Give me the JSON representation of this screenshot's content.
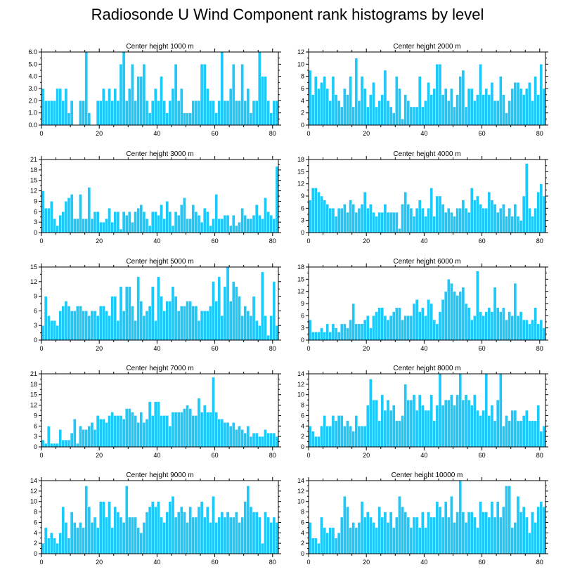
{
  "title": "Radiosonde U Wind Component rank histograms by level",
  "bar_color": "#1EC8F8",
  "chart_data": [
    {
      "type": "bar",
      "title": "Center height 1000 m",
      "xlim": [
        0,
        82
      ],
      "xticks": [
        0,
        20,
        40,
        60,
        80
      ],
      "ylim": [
        0,
        6
      ],
      "yticks": [
        "0.0",
        "1.0",
        "2.0",
        "3.0",
        "4.0",
        "5.0",
        "6.0"
      ],
      "values": [
        3,
        2,
        2,
        2,
        2,
        3,
        3,
        2,
        3,
        1,
        2,
        0,
        0,
        2,
        2,
        6,
        1,
        0,
        0,
        2,
        2,
        3,
        2,
        3,
        2,
        3,
        2,
        5,
        6,
        2,
        3,
        5,
        2,
        4,
        4,
        5,
        2,
        1,
        2,
        3,
        2,
        4,
        2,
        1,
        2,
        3,
        5,
        2,
        3,
        1,
        1,
        1,
        2,
        2,
        2,
        5,
        5,
        3,
        2,
        2,
        1,
        2,
        6,
        2,
        2,
        3,
        5,
        2,
        2,
        5,
        2,
        3,
        1,
        2,
        2,
        6,
        4,
        4,
        2,
        1,
        2,
        2
      ]
    },
    {
      "type": "bar",
      "title": "Center height 2000 m",
      "xlim": [
        0,
        82
      ],
      "xticks": [
        0,
        20,
        40,
        60,
        80
      ],
      "ylim": [
        0,
        12
      ],
      "yticks": [
        "0",
        "2",
        "4",
        "6",
        "8",
        "10",
        "12"
      ],
      "values": [
        9,
        5,
        8,
        6,
        7,
        8,
        6,
        4,
        8,
        5,
        4,
        3,
        6,
        5,
        8,
        3,
        11,
        4,
        8,
        6,
        3,
        5,
        7,
        3,
        4,
        5,
        9,
        4,
        3,
        2,
        8,
        6,
        1,
        5,
        4,
        3,
        3,
        3,
        8,
        3,
        4,
        7,
        5,
        6,
        10,
        10,
        5,
        6,
        4,
        6,
        3,
        5,
        8,
        9,
        3,
        6,
        6,
        4,
        5,
        10,
        5,
        6,
        5,
        7,
        4,
        4,
        8,
        5,
        2,
        4,
        6,
        7,
        7,
        6,
        5,
        6,
        7,
        4,
        8,
        5,
        10,
        6
      ]
    },
    {
      "type": "bar",
      "title": "Center height 3000 m",
      "xlim": [
        0,
        82
      ],
      "xticks": [
        0,
        20,
        40,
        60,
        80
      ],
      "ylim": [
        0,
        21
      ],
      "yticks": [
        "0",
        "3",
        "6",
        "9",
        "12",
        "15",
        "18",
        "21"
      ],
      "values": [
        12,
        7,
        7,
        9,
        4,
        2,
        5,
        6,
        9,
        10,
        11,
        4,
        4,
        11,
        4,
        4,
        13,
        4,
        6,
        6,
        3,
        3,
        4,
        7,
        3,
        6,
        6,
        1,
        6,
        5,
        6,
        3,
        6,
        7,
        8,
        6,
        4,
        2,
        6,
        6,
        5,
        8,
        4,
        9,
        6,
        2,
        6,
        5,
        8,
        10,
        4,
        4,
        8,
        6,
        5,
        3,
        7,
        6,
        2,
        4,
        11,
        4,
        4,
        5,
        5,
        2,
        5,
        2,
        3,
        7,
        5,
        4,
        4,
        5,
        8,
        5,
        4,
        10,
        6,
        5,
        4,
        19
      ]
    },
    {
      "type": "bar",
      "title": "Center height 4000 m",
      "xlim": [
        0,
        82
      ],
      "xticks": [
        0,
        20,
        40,
        60,
        80
      ],
      "ylim": [
        0,
        18
      ],
      "yticks": [
        "0",
        "3",
        "6",
        "9",
        "12",
        "15",
        "18"
      ],
      "values": [
        8,
        11,
        11,
        10,
        9,
        8,
        7,
        6,
        6,
        4,
        6,
        6,
        7,
        5,
        8,
        7,
        5,
        6,
        7,
        10,
        6,
        7,
        5,
        4,
        5,
        5,
        7,
        5,
        5,
        5,
        5,
        1,
        7,
        10,
        7,
        6,
        4,
        6,
        8,
        6,
        4,
        6,
        11,
        4,
        9,
        9,
        7,
        5,
        6,
        5,
        4,
        6,
        6,
        8,
        6,
        5,
        11,
        8,
        9,
        7,
        6,
        6,
        10,
        8,
        7,
        5,
        6,
        7,
        4,
        6,
        4,
        7,
        4,
        3,
        9,
        17,
        6,
        4,
        6,
        10,
        12,
        9
      ]
    },
    {
      "type": "bar",
      "title": "Center height 5000 m",
      "xlim": [
        0,
        82
      ],
      "xticks": [
        0,
        20,
        40,
        60,
        80
      ],
      "ylim": [
        0,
        15
      ],
      "yticks": [
        "0",
        "3",
        "6",
        "9",
        "12",
        "15"
      ],
      "values": [
        3,
        9,
        5,
        4,
        4,
        3,
        6,
        7,
        8,
        7,
        6,
        6,
        7,
        7,
        6,
        6,
        5,
        6,
        6,
        5,
        7,
        7,
        6,
        5,
        9,
        9,
        4,
        11,
        6,
        11,
        11,
        7,
        4,
        13,
        8,
        5,
        6,
        7,
        11,
        4,
        13,
        9,
        6,
        8,
        8,
        11,
        9,
        6,
        7,
        7,
        8,
        8,
        7,
        7,
        4,
        6,
        6,
        6,
        7,
        12,
        8,
        13,
        5,
        11,
        15,
        8,
        12,
        11,
        9,
        5,
        7,
        6,
        5,
        9,
        4,
        3,
        14,
        5,
        1,
        5,
        12,
        3
      ]
    },
    {
      "type": "bar",
      "title": "Center height 6000 m",
      "xlim": [
        0,
        82
      ],
      "xticks": [
        0,
        20,
        40,
        60,
        80
      ],
      "ylim": [
        0,
        18
      ],
      "yticks": [
        "0",
        "3",
        "6",
        "9",
        "12",
        "15",
        "18"
      ],
      "values": [
        5,
        2,
        2,
        2,
        3,
        2,
        4,
        2,
        4,
        3,
        2,
        4,
        4,
        3,
        5,
        9,
        4,
        4,
        4,
        5,
        6,
        3,
        6,
        7,
        8,
        8,
        6,
        5,
        6,
        7,
        8,
        8,
        5,
        6,
        6,
        6,
        9,
        10,
        7,
        8,
        6,
        10,
        9,
        5,
        4,
        7,
        10,
        12,
        15,
        14,
        12,
        11,
        12,
        13,
        9,
        8,
        5,
        6,
        17,
        7,
        6,
        7,
        8,
        7,
        13,
        8,
        7,
        8,
        5,
        7,
        6,
        14,
        6,
        7,
        5,
        5,
        4,
        5,
        8,
        4,
        5,
        3
      ]
    },
    {
      "type": "bar",
      "title": "Center height 7000 m",
      "xlim": [
        0,
        82
      ],
      "xticks": [
        0,
        20,
        40,
        60,
        80
      ],
      "ylim": [
        0,
        21
      ],
      "yticks": [
        "0",
        "3",
        "6",
        "9",
        "12",
        "15",
        "18",
        "21"
      ],
      "values": [
        2,
        1,
        6,
        1,
        1,
        1,
        5,
        2,
        2,
        2,
        4,
        8,
        1,
        6,
        5,
        5,
        6,
        7,
        5,
        9,
        8,
        8,
        7,
        9,
        10,
        9,
        9,
        9,
        8,
        11,
        11,
        10,
        9,
        7,
        10,
        7,
        8,
        13,
        9,
        13,
        13,
        9,
        9,
        9,
        6,
        10,
        10,
        10,
        10,
        11,
        12,
        11,
        9,
        9,
        14,
        10,
        12,
        10,
        10,
        20,
        10,
        8,
        8,
        7,
        7,
        6,
        7,
        5,
        6,
        5,
        4,
        6,
        3,
        4,
        4,
        3,
        3,
        5,
        4,
        4,
        4,
        3
      ]
    },
    {
      "type": "bar",
      "title": "Center height 8000 m",
      "xlim": [
        0,
        82
      ],
      "xticks": [
        0,
        20,
        40,
        60,
        80
      ],
      "ylim": [
        0,
        14
      ],
      "yticks": [
        "0",
        "2",
        "4",
        "6",
        "8",
        "10",
        "12",
        "14"
      ],
      "values": [
        4,
        3,
        2,
        2,
        4,
        6,
        4,
        4,
        6,
        5,
        6,
        6,
        4,
        5,
        4,
        3,
        6,
        4,
        4,
        4,
        8,
        13,
        9,
        9,
        5,
        10,
        7,
        9,
        7,
        8,
        5,
        5,
        6,
        12,
        9,
        9,
        10,
        7,
        10,
        8,
        7,
        7,
        10,
        5,
        8,
        14,
        8,
        9,
        9,
        10,
        8,
        10,
        14,
        9,
        10,
        9,
        8,
        10,
        7,
        6,
        7,
        14,
        6,
        8,
        5,
        9,
        14,
        4,
        6,
        5,
        7,
        7,
        5,
        5,
        6,
        7,
        5,
        5,
        5,
        8,
        3,
        4
      ]
    },
    {
      "type": "bar",
      "title": "Center height 9000 m",
      "xlim": [
        0,
        82
      ],
      "xticks": [
        0,
        20,
        40,
        60,
        80
      ],
      "ylim": [
        0,
        14
      ],
      "yticks": [
        "0",
        "2",
        "4",
        "6",
        "8",
        "10",
        "12",
        "14"
      ],
      "values": [
        2,
        5,
        3,
        4,
        3,
        2,
        4,
        9,
        6,
        3,
        8,
        6,
        5,
        6,
        5,
        13,
        9,
        6,
        7,
        5,
        10,
        10,
        7,
        10,
        5,
        9,
        8,
        7,
        6,
        13,
        7,
        7,
        7,
        5,
        4,
        6,
        8,
        9,
        10,
        9,
        10,
        7,
        6,
        8,
        10,
        11,
        7,
        8,
        9,
        8,
        6,
        9,
        7,
        7,
        9,
        10,
        7,
        9,
        6,
        11,
        6,
        7,
        8,
        7,
        8,
        7,
        7,
        8,
        6,
        7,
        10,
        13,
        9,
        8,
        8,
        7,
        2,
        8,
        7,
        6,
        7,
        6
      ]
    },
    {
      "type": "bar",
      "title": "Center height 10000 m",
      "xlim": [
        0,
        82
      ],
      "xticks": [
        0,
        20,
        40,
        60,
        80
      ],
      "ylim": [
        0,
        14
      ],
      "yticks": [
        "0",
        "2",
        "4",
        "6",
        "8",
        "10",
        "12",
        "14"
      ],
      "values": [
        6,
        3,
        3,
        2,
        7,
        5,
        4,
        5,
        5,
        3,
        4,
        7,
        11,
        9,
        5,
        6,
        5,
        6,
        10,
        7,
        8,
        7,
        6,
        5,
        9,
        7,
        8,
        6,
        8,
        5,
        7,
        11,
        9,
        8,
        7,
        5,
        7,
        7,
        5,
        8,
        5,
        8,
        7,
        7,
        10,
        9,
        7,
        10,
        7,
        11,
        6,
        8,
        14,
        8,
        6,
        8,
        8,
        7,
        5,
        10,
        8,
        8,
        7,
        10,
        7,
        10,
        7,
        9,
        13,
        13,
        5,
        6,
        11,
        8,
        9,
        7,
        4,
        8,
        6,
        9,
        10,
        9
      ]
    }
  ]
}
